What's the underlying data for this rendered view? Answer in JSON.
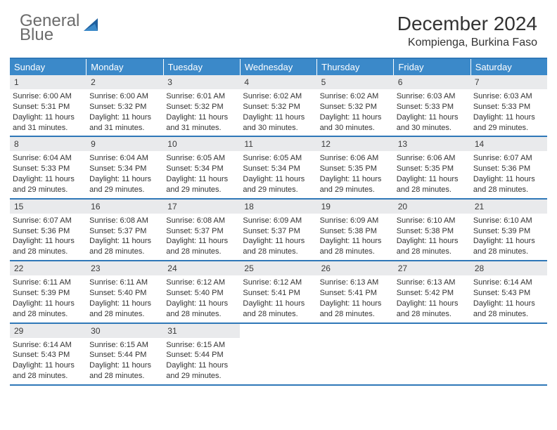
{
  "brand": {
    "word1": "General",
    "word2": "Blue"
  },
  "title": "December 2024",
  "location": "Kompienga, Burkina Faso",
  "colors": {
    "header_bg": "#3b89c9",
    "header_text": "#ffffff",
    "rule": "#2f78b8",
    "daynum_bg": "#e9eaec",
    "text": "#333333",
    "logo_gray": "#6b6b6b",
    "logo_blue": "#2f7fc2"
  },
  "days_of_week": [
    "Sunday",
    "Monday",
    "Tuesday",
    "Wednesday",
    "Thursday",
    "Friday",
    "Saturday"
  ],
  "weeks": [
    [
      {
        "n": "1",
        "sr": "Sunrise: 6:00 AM",
        "ss": "Sunset: 5:31 PM",
        "dl": "Daylight: 11 hours and 31 minutes."
      },
      {
        "n": "2",
        "sr": "Sunrise: 6:00 AM",
        "ss": "Sunset: 5:32 PM",
        "dl": "Daylight: 11 hours and 31 minutes."
      },
      {
        "n": "3",
        "sr": "Sunrise: 6:01 AM",
        "ss": "Sunset: 5:32 PM",
        "dl": "Daylight: 11 hours and 31 minutes."
      },
      {
        "n": "4",
        "sr": "Sunrise: 6:02 AM",
        "ss": "Sunset: 5:32 PM",
        "dl": "Daylight: 11 hours and 30 minutes."
      },
      {
        "n": "5",
        "sr": "Sunrise: 6:02 AM",
        "ss": "Sunset: 5:32 PM",
        "dl": "Daylight: 11 hours and 30 minutes."
      },
      {
        "n": "6",
        "sr": "Sunrise: 6:03 AM",
        "ss": "Sunset: 5:33 PM",
        "dl": "Daylight: 11 hours and 30 minutes."
      },
      {
        "n": "7",
        "sr": "Sunrise: 6:03 AM",
        "ss": "Sunset: 5:33 PM",
        "dl": "Daylight: 11 hours and 29 minutes."
      }
    ],
    [
      {
        "n": "8",
        "sr": "Sunrise: 6:04 AM",
        "ss": "Sunset: 5:33 PM",
        "dl": "Daylight: 11 hours and 29 minutes."
      },
      {
        "n": "9",
        "sr": "Sunrise: 6:04 AM",
        "ss": "Sunset: 5:34 PM",
        "dl": "Daylight: 11 hours and 29 minutes."
      },
      {
        "n": "10",
        "sr": "Sunrise: 6:05 AM",
        "ss": "Sunset: 5:34 PM",
        "dl": "Daylight: 11 hours and 29 minutes."
      },
      {
        "n": "11",
        "sr": "Sunrise: 6:05 AM",
        "ss": "Sunset: 5:34 PM",
        "dl": "Daylight: 11 hours and 29 minutes."
      },
      {
        "n": "12",
        "sr": "Sunrise: 6:06 AM",
        "ss": "Sunset: 5:35 PM",
        "dl": "Daylight: 11 hours and 29 minutes."
      },
      {
        "n": "13",
        "sr": "Sunrise: 6:06 AM",
        "ss": "Sunset: 5:35 PM",
        "dl": "Daylight: 11 hours and 28 minutes."
      },
      {
        "n": "14",
        "sr": "Sunrise: 6:07 AM",
        "ss": "Sunset: 5:36 PM",
        "dl": "Daylight: 11 hours and 28 minutes."
      }
    ],
    [
      {
        "n": "15",
        "sr": "Sunrise: 6:07 AM",
        "ss": "Sunset: 5:36 PM",
        "dl": "Daylight: 11 hours and 28 minutes."
      },
      {
        "n": "16",
        "sr": "Sunrise: 6:08 AM",
        "ss": "Sunset: 5:37 PM",
        "dl": "Daylight: 11 hours and 28 minutes."
      },
      {
        "n": "17",
        "sr": "Sunrise: 6:08 AM",
        "ss": "Sunset: 5:37 PM",
        "dl": "Daylight: 11 hours and 28 minutes."
      },
      {
        "n": "18",
        "sr": "Sunrise: 6:09 AM",
        "ss": "Sunset: 5:37 PM",
        "dl": "Daylight: 11 hours and 28 minutes."
      },
      {
        "n": "19",
        "sr": "Sunrise: 6:09 AM",
        "ss": "Sunset: 5:38 PM",
        "dl": "Daylight: 11 hours and 28 minutes."
      },
      {
        "n": "20",
        "sr": "Sunrise: 6:10 AM",
        "ss": "Sunset: 5:38 PM",
        "dl": "Daylight: 11 hours and 28 minutes."
      },
      {
        "n": "21",
        "sr": "Sunrise: 6:10 AM",
        "ss": "Sunset: 5:39 PM",
        "dl": "Daylight: 11 hours and 28 minutes."
      }
    ],
    [
      {
        "n": "22",
        "sr": "Sunrise: 6:11 AM",
        "ss": "Sunset: 5:39 PM",
        "dl": "Daylight: 11 hours and 28 minutes."
      },
      {
        "n": "23",
        "sr": "Sunrise: 6:11 AM",
        "ss": "Sunset: 5:40 PM",
        "dl": "Daylight: 11 hours and 28 minutes."
      },
      {
        "n": "24",
        "sr": "Sunrise: 6:12 AM",
        "ss": "Sunset: 5:40 PM",
        "dl": "Daylight: 11 hours and 28 minutes."
      },
      {
        "n": "25",
        "sr": "Sunrise: 6:12 AM",
        "ss": "Sunset: 5:41 PM",
        "dl": "Daylight: 11 hours and 28 minutes."
      },
      {
        "n": "26",
        "sr": "Sunrise: 6:13 AM",
        "ss": "Sunset: 5:41 PM",
        "dl": "Daylight: 11 hours and 28 minutes."
      },
      {
        "n": "27",
        "sr": "Sunrise: 6:13 AM",
        "ss": "Sunset: 5:42 PM",
        "dl": "Daylight: 11 hours and 28 minutes."
      },
      {
        "n": "28",
        "sr": "Sunrise: 6:14 AM",
        "ss": "Sunset: 5:43 PM",
        "dl": "Daylight: 11 hours and 28 minutes."
      }
    ],
    [
      {
        "n": "29",
        "sr": "Sunrise: 6:14 AM",
        "ss": "Sunset: 5:43 PM",
        "dl": "Daylight: 11 hours and 28 minutes."
      },
      {
        "n": "30",
        "sr": "Sunrise: 6:15 AM",
        "ss": "Sunset: 5:44 PM",
        "dl": "Daylight: 11 hours and 28 minutes."
      },
      {
        "n": "31",
        "sr": "Sunrise: 6:15 AM",
        "ss": "Sunset: 5:44 PM",
        "dl": "Daylight: 11 hours and 29 minutes."
      },
      null,
      null,
      null,
      null
    ]
  ]
}
